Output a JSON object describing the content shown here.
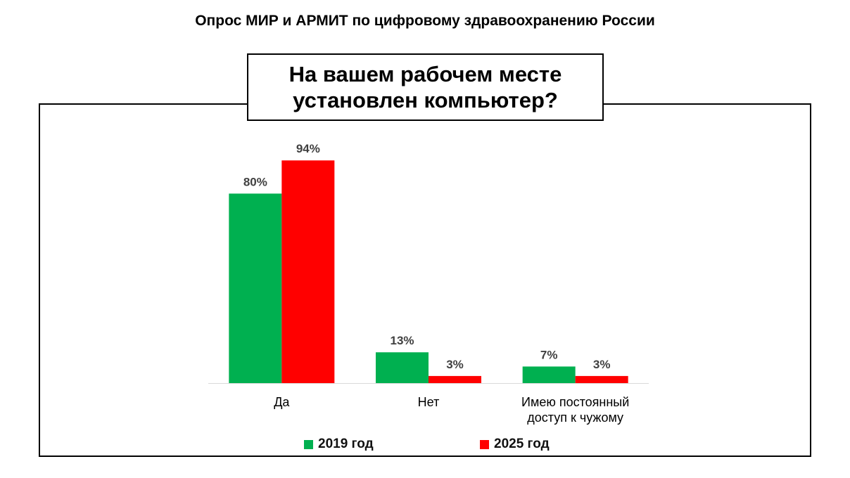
{
  "header": {
    "title": "Опрос МИР и АРМИТ по цифровому здравоохранению России"
  },
  "chart_data": {
    "type": "bar",
    "title": "На вашем рабочем месте установлен компьютер?",
    "categories": [
      "Да",
      "Нет",
      "Имею постоянный доступ к чужому"
    ],
    "series": [
      {
        "name": "2019 год",
        "color": "#00b050",
        "values": [
          80,
          13,
          7
        ]
      },
      {
        "name": "2025 год",
        "color": "#ff0000",
        "values": [
          94,
          3,
          3
        ]
      }
    ],
    "value_suffix": "%",
    "ylim": [
      0,
      100
    ],
    "grid": false,
    "legend_position": "bottom"
  }
}
